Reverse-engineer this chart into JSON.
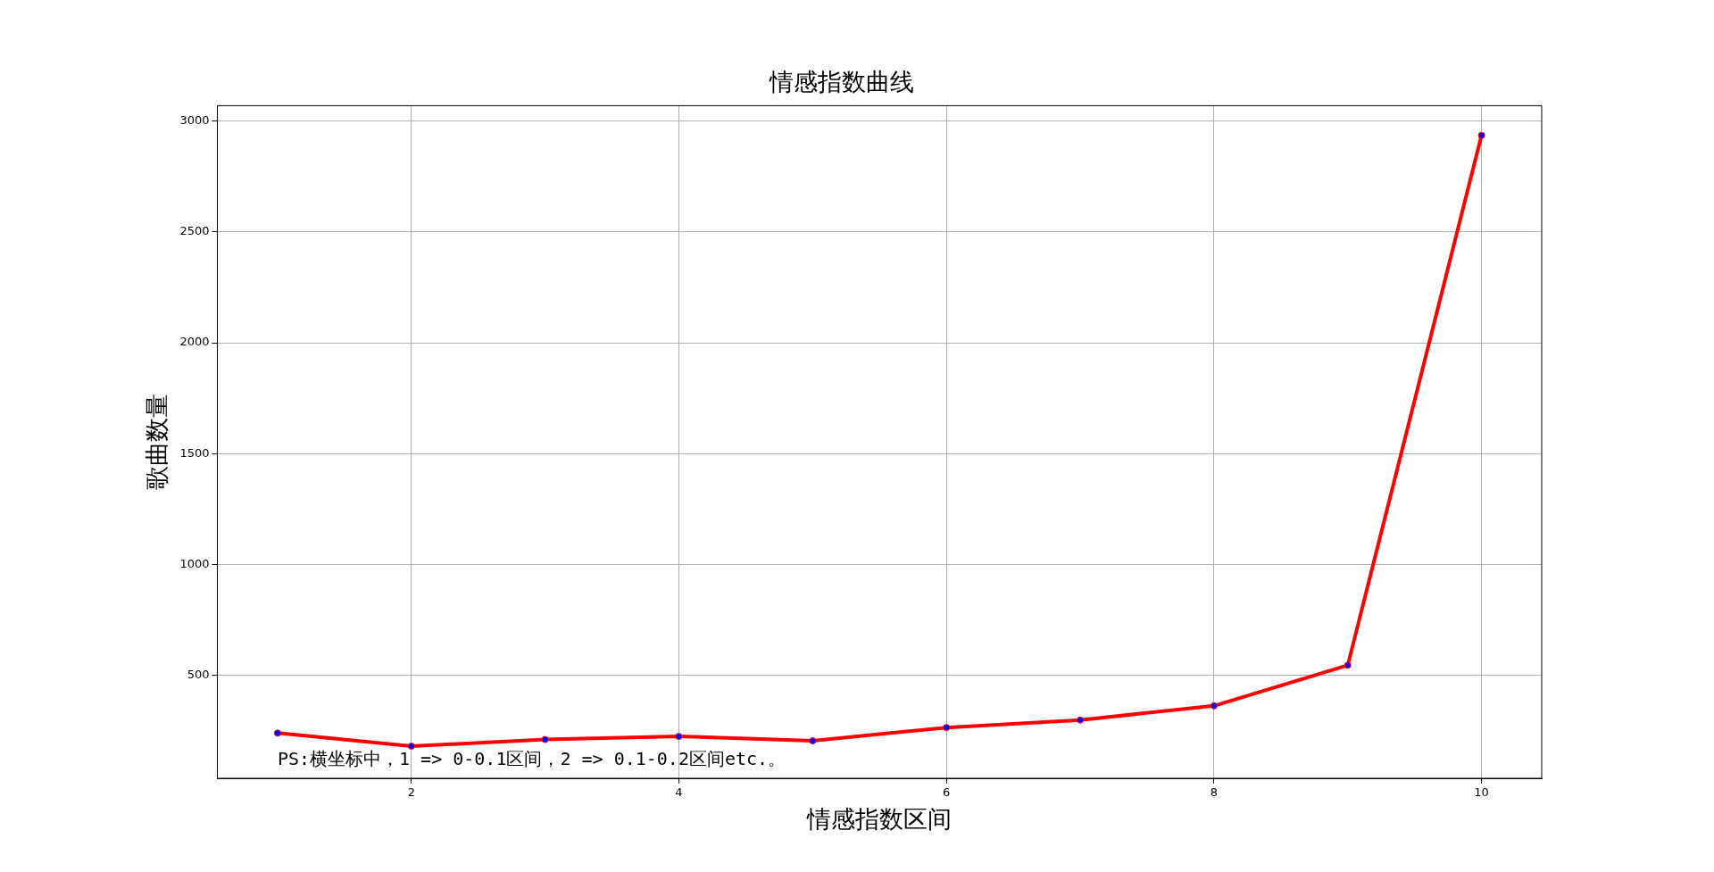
{
  "chart_data": {
    "type": "line",
    "title": "情感指数曲线",
    "xlabel": "情感指数区间",
    "ylabel": "歌曲数量",
    "x": [
      1,
      2,
      3,
      4,
      5,
      6,
      7,
      8,
      9,
      10
    ],
    "series": [
      {
        "color": "#ff0000",
        "values": [
          239,
          180,
          210,
          224,
          204,
          264,
          298,
          362,
          545,
          2936
        ]
      }
    ],
    "xlim": [
      0.55,
      10.45
    ],
    "xticks": [
      2,
      4,
      6,
      8,
      10
    ],
    "ylim": [
      35,
      3070
    ],
    "yticks": [
      500,
      1000,
      1500,
      2000,
      2500,
      3000
    ],
    "grid": true,
    "marker": "circle",
    "line_style": "solid",
    "annotations": [
      "PS:横坐标中，1 => 0-0.1区间，2 => 0.1-0.2区间etc.。"
    ]
  }
}
